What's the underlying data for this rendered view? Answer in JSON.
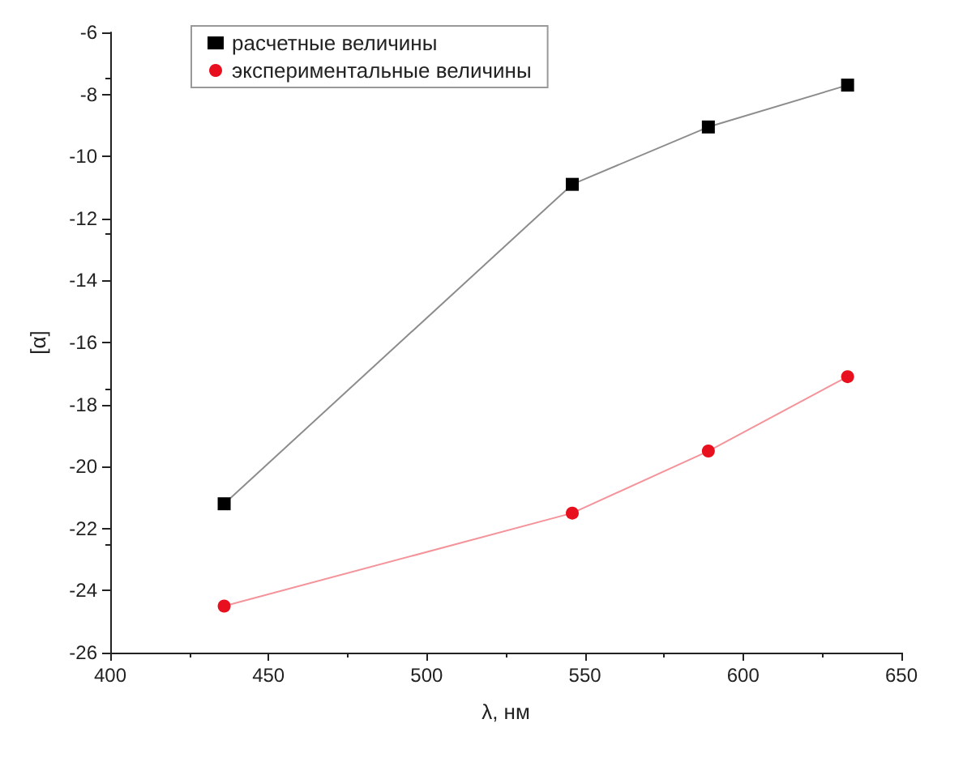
{
  "chart_data": {
    "type": "line",
    "xlabel": "λ, нм",
    "ylabel": "[α]",
    "xlim": [
      400,
      650
    ],
    "xticks": [
      400,
      450,
      500,
      550,
      600,
      650
    ],
    "ylim": [
      -26,
      -6
    ],
    "yticks": [
      -26,
      -24,
      -22,
      -20,
      -18,
      -16,
      -14,
      -12,
      -10,
      -8,
      -6
    ],
    "grid": false,
    "legend": "top left",
    "line_style": "solid",
    "series": [
      {
        "name": "расчетные величины",
        "color": "#000000",
        "marker": "square",
        "x": [
          436,
          546,
          589,
          633
        ],
        "values": [
          -21.2,
          -10.9,
          -9.05,
          -7.7
        ]
      },
      {
        "name": "экспериментальные величины",
        "color": "#e8101e",
        "marker": "circle",
        "x": [
          436,
          546,
          589,
          633
        ],
        "values": [
          -24.5,
          -21.5,
          -19.5,
          -17.1
        ]
      }
    ]
  }
}
